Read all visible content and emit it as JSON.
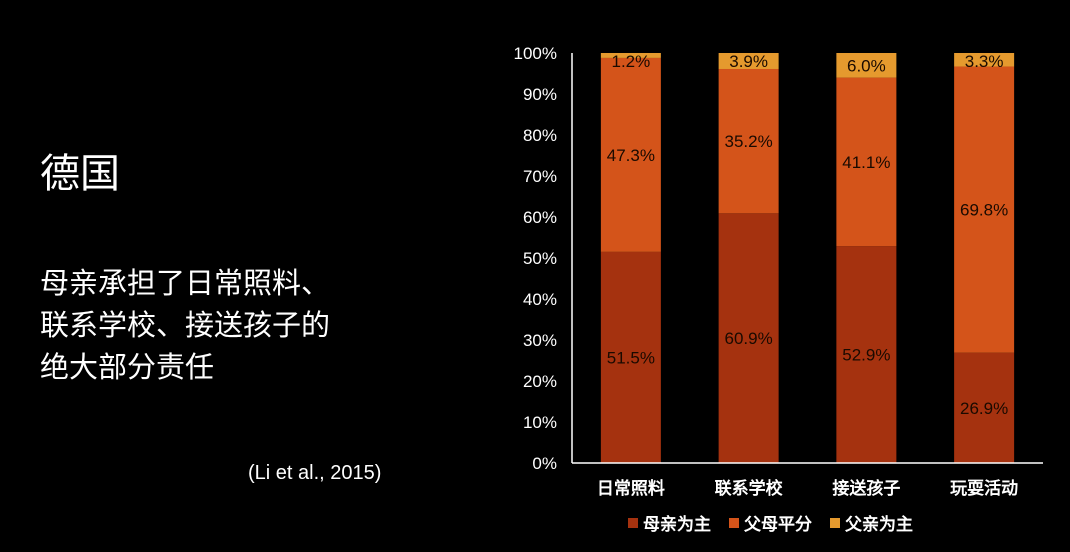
{
  "slide": {
    "title": "德国",
    "body_lines": [
      "母亲承担了日常照料、",
      "联系学校、接送孩子的",
      "绝大部分责任"
    ],
    "citation": "(Li et al., 2015)"
  },
  "chart_data": {
    "type": "bar",
    "stacked": true,
    "categories": [
      "日常照料",
      "联系学校",
      "接送孩子",
      "玩耍活动"
    ],
    "series": [
      {
        "name": "母亲为主",
        "color": "#a5320f",
        "values": [
          51.5,
          60.9,
          52.9,
          26.9
        ],
        "labels": [
          "51.5%",
          "60.9%",
          "52.9%",
          "26.9%"
        ]
      },
      {
        "name": "父母平分",
        "color": "#d4541a",
        "values": [
          47.3,
          35.2,
          41.1,
          69.8
        ],
        "labels": [
          "47.3%",
          "35.2%",
          "41.1%",
          "69.8%"
        ]
      },
      {
        "name": "父亲为主",
        "color": "#e59a2e",
        "values": [
          1.2,
          3.9,
          6.0,
          3.3
        ],
        "labels": [
          "1.2%",
          "3.9%",
          "6.0%",
          "3.3%"
        ]
      }
    ],
    "ylim": [
      0,
      100
    ],
    "yticks": [
      "0%",
      "10%",
      "20%",
      "30%",
      "40%",
      "50%",
      "60%",
      "70%",
      "80%",
      "90%",
      "100%"
    ],
    "ytick_values": [
      0,
      10,
      20,
      30,
      40,
      50,
      60,
      70,
      80,
      90,
      100
    ],
    "xlabel": "",
    "ylabel": "",
    "grid": false,
    "legend": "bottom"
  }
}
